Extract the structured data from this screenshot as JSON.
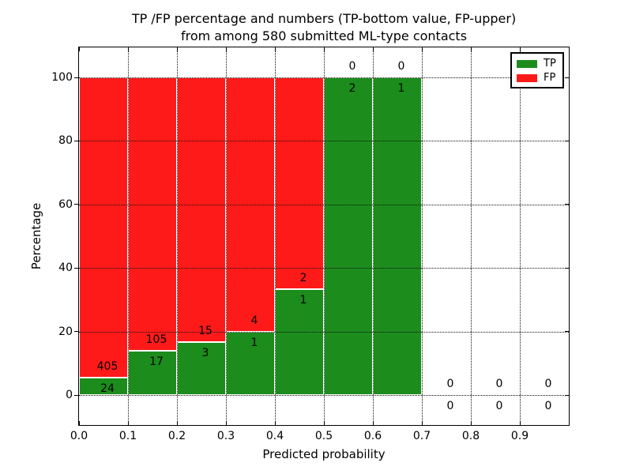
{
  "figure": {
    "title_line1": "TP /FP percentage and numbers (TP-bottom value, FP-upper)",
    "title_line2": "from among 580 submitted ML-type contacts"
  },
  "chart_data": {
    "type": "bar",
    "stacked": true,
    "title": "TP /FP percentage and numbers (TP-bottom value, FP-upper) from among 580 submitted ML-type contacts",
    "xlabel": "Predicted probability",
    "ylabel": "Percentage",
    "total_contacts": 580,
    "bin_width": 0.1,
    "bin_starts": [
      0.0,
      0.1,
      0.2,
      0.3,
      0.4,
      0.5,
      0.6,
      0.7,
      0.8,
      0.9
    ],
    "series": [
      {
        "name": "TP",
        "color": "#1c8c1c",
        "counts": [
          24,
          17,
          3,
          1,
          1,
          2,
          1,
          0,
          0,
          0
        ]
      },
      {
        "name": "FP",
        "color": "#ff1a1a",
        "counts": [
          405,
          105,
          15,
          4,
          2,
          0,
          0,
          0,
          0,
          0
        ]
      }
    ],
    "tp_percent_per_bin": [
      5.6,
      13.9,
      16.7,
      20.0,
      33.3,
      100.0,
      100.0,
      null,
      null,
      null
    ],
    "bar_total_percent": 100,
    "x_tick_labels": [
      "0.0",
      "0.1",
      "0.2",
      "0.3",
      "0.4",
      "0.5",
      "0.6",
      "0.7",
      "0.8",
      "0.9"
    ],
    "y_ticks": [
      0,
      20,
      40,
      60,
      80,
      100
    ],
    "xlim": [
      0.0,
      1.0
    ],
    "ylim_percent": [
      -9.5,
      109.5
    ],
    "grid": "dotted black, both axes",
    "annotation_scheme": "FP count printed above TP/FP boundary, TP count printed below boundary",
    "legend": {
      "position": "upper right",
      "entries": [
        {
          "label": "TP",
          "color": "#1c8c1c"
        },
        {
          "label": "FP",
          "color": "#ff1a1a"
        }
      ]
    }
  },
  "colors": {
    "tp_green": "#1c8c1c",
    "fp_red": "#ff1a1a",
    "background": "#ffffff",
    "text": "#000000",
    "grid": "#111111"
  }
}
